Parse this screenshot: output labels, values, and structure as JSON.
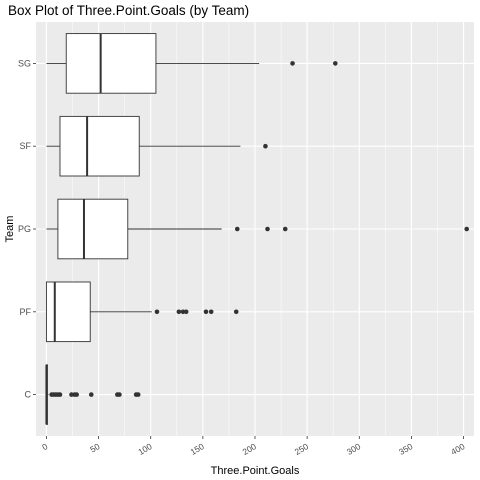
{
  "chart_data": {
    "type": "boxplot",
    "orientation": "horizontal",
    "title": "Box Plot of Three.Point.Goals (by Team)",
    "xlabel": "Three.Point.Goals",
    "ylabel": "Team",
    "xlim": [
      -10,
      410
    ],
    "x_ticks": [
      0,
      50,
      100,
      150,
      200,
      250,
      300,
      350,
      400
    ],
    "x_tick_labels": [
      "0",
      "50",
      "100",
      "150",
      "200",
      "250",
      "300",
      "350",
      "400"
    ],
    "categories": [
      "C",
      "PF",
      "PG",
      "SF",
      "SG"
    ],
    "series": [
      {
        "category": "C",
        "whisker_low": 0,
        "q1": 0,
        "median": 0,
        "q3": 1,
        "whisker_high": 2,
        "outliers": [
          5,
          7,
          9,
          11,
          13,
          24,
          27,
          29,
          43,
          68,
          70,
          86,
          88
        ]
      },
      {
        "category": "PF",
        "whisker_low": 0,
        "q1": 0,
        "median": 8,
        "q3": 42,
        "whisker_high": 101,
        "outliers": [
          106,
          127,
          131,
          134,
          153,
          158,
          182
        ]
      },
      {
        "category": "PG",
        "whisker_low": 0,
        "q1": 11,
        "median": 36,
        "q3": 78,
        "whisker_high": 168,
        "outliers": [
          183,
          212,
          229,
          403
        ]
      },
      {
        "category": "SF",
        "whisker_low": 0,
        "q1": 13,
        "median": 39,
        "q3": 89,
        "whisker_high": 186,
        "outliers": [
          210
        ]
      },
      {
        "category": "SG",
        "whisker_low": 0,
        "q1": 19,
        "median": 52,
        "q3": 105,
        "whisker_high": 204,
        "outliers": [
          236,
          277
        ]
      }
    ],
    "grid": true,
    "legend": "none",
    "colors": {
      "panel": "#ebebeb",
      "grid": "#ffffff",
      "box_fill": "#ffffff",
      "stroke": "#333333",
      "point": "#333333"
    }
  }
}
